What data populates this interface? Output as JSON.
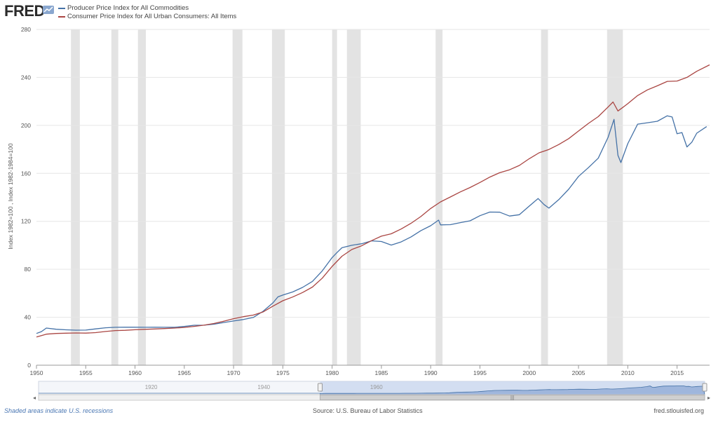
{
  "header": {
    "logo_text": "FRED"
  },
  "colors": {
    "ppi": "#4572a7",
    "cpi": "#aa4643",
    "recession": "#e3e3e3",
    "grid": "#e6e6e6",
    "navigator_fill": "#c8d6ee"
  },
  "chart_data": {
    "type": "line",
    "ylabel": "Index 1982=100 , Index 1982-1984=100",
    "ylim": [
      0,
      280
    ],
    "xlim": [
      1950,
      2018.3
    ],
    "yticks": [
      0,
      40,
      80,
      120,
      160,
      200,
      240,
      280
    ],
    "xticks": [
      1950,
      1955,
      1960,
      1965,
      1970,
      1975,
      1980,
      1985,
      1990,
      1995,
      2000,
      2005,
      2010,
      2015
    ],
    "recessions": [
      [
        1953.5,
        1954.4
      ],
      [
        1957.6,
        1958.3
      ],
      [
        1960.3,
        1961.1
      ],
      [
        1969.9,
        1970.9
      ],
      [
        1973.9,
        1975.2
      ],
      [
        1980.0,
        1980.5
      ],
      [
        1981.5,
        1982.9
      ],
      [
        1990.5,
        1991.2
      ],
      [
        2001.2,
        2001.9
      ],
      [
        2007.9,
        2009.5
      ]
    ],
    "series": [
      {
        "name": "Producer Price Index for All Commodities",
        "points": [
          [
            1950,
            26.5
          ],
          [
            1950.5,
            28
          ],
          [
            1951,
            31
          ],
          [
            1952,
            30
          ],
          [
            1953,
            29.5
          ],
          [
            1954,
            29.2
          ],
          [
            1955,
            29.3
          ],
          [
            1956,
            30.3
          ],
          [
            1957,
            31.2
          ],
          [
            1958,
            31.6
          ],
          [
            1959,
            31.7
          ],
          [
            1960,
            31.7
          ],
          [
            1961,
            31.6
          ],
          [
            1962,
            31.7
          ],
          [
            1963,
            31.6
          ],
          [
            1964,
            31.6
          ],
          [
            1965,
            32.3
          ],
          [
            1966,
            33.3
          ],
          [
            1967,
            33.4
          ],
          [
            1968,
            34.2
          ],
          [
            1969,
            35.6
          ],
          [
            1970,
            36.9
          ],
          [
            1971,
            38.1
          ],
          [
            1972,
            39.8
          ],
          [
            1973,
            45
          ],
          [
            1974,
            52
          ],
          [
            1974.5,
            57
          ],
          [
            1975,
            58.5
          ],
          [
            1976,
            61.1
          ],
          [
            1977,
            64.9
          ],
          [
            1978,
            69.9
          ],
          [
            1979,
            78.7
          ],
          [
            1980,
            89.8
          ],
          [
            1980.5,
            94
          ],
          [
            1981,
            98
          ],
          [
            1982,
            100
          ],
          [
            1983,
            101.3
          ],
          [
            1984,
            103.7
          ],
          [
            1985,
            103.2
          ],
          [
            1986,
            100.2
          ],
          [
            1987,
            102.8
          ],
          [
            1988,
            106.9
          ],
          [
            1989,
            112.2
          ],
          [
            1990,
            116.3
          ],
          [
            1990.8,
            121
          ],
          [
            1991,
            117
          ],
          [
            1992,
            117.2
          ],
          [
            1993,
            118.9
          ],
          [
            1994,
            120.4
          ],
          [
            1995,
            124.7
          ],
          [
            1996,
            127.7
          ],
          [
            1997,
            127.6
          ],
          [
            1998,
            124.4
          ],
          [
            1999,
            125.5
          ],
          [
            2000,
            132.7
          ],
          [
            2000.9,
            139
          ],
          [
            2001.5,
            134
          ],
          [
            2002,
            131
          ],
          [
            2003,
            138.1
          ],
          [
            2004,
            146.7
          ],
          [
            2005,
            157.4
          ],
          [
            2006,
            164.7
          ],
          [
            2007,
            172.6
          ],
          [
            2008,
            190
          ],
          [
            2008.6,
            205
          ],
          [
            2009,
            175
          ],
          [
            2009.3,
            169
          ],
          [
            2010,
            184.7
          ],
          [
            2011,
            201
          ],
          [
            2012,
            202.2
          ],
          [
            2013,
            203.4
          ],
          [
            2014,
            208
          ],
          [
            2014.5,
            207
          ],
          [
            2015,
            193
          ],
          [
            2015.5,
            194
          ],
          [
            2016,
            182
          ],
          [
            2016.5,
            186
          ],
          [
            2017,
            193.5
          ],
          [
            2018,
            199
          ]
        ]
      },
      {
        "name": "Consumer Price Index for All Urban Consumers: All Items",
        "points": [
          [
            1950,
            23.5
          ],
          [
            1951,
            25.9
          ],
          [
            1952,
            26.5
          ],
          [
            1953,
            26.7
          ],
          [
            1954,
            26.9
          ],
          [
            1955,
            26.8
          ],
          [
            1956,
            27.2
          ],
          [
            1957,
            28.1
          ],
          [
            1958,
            28.9
          ],
          [
            1959,
            29.1
          ],
          [
            1960,
            29.6
          ],
          [
            1961,
            29.9
          ],
          [
            1962,
            30.2
          ],
          [
            1963,
            30.6
          ],
          [
            1964,
            31.0
          ],
          [
            1965,
            31.5
          ],
          [
            1966,
            32.4
          ],
          [
            1967,
            33.4
          ],
          [
            1968,
            34.8
          ],
          [
            1969,
            36.7
          ],
          [
            1970,
            38.8
          ],
          [
            1971,
            40.5
          ],
          [
            1972,
            41.8
          ],
          [
            1973,
            44.4
          ],
          [
            1974,
            49.3
          ],
          [
            1975,
            53.8
          ],
          [
            1976,
            56.9
          ],
          [
            1977,
            60.6
          ],
          [
            1978,
            65.2
          ],
          [
            1979,
            72.6
          ],
          [
            1980,
            82.4
          ],
          [
            1981,
            90.9
          ],
          [
            1982,
            96.5
          ],
          [
            1983,
            99.6
          ],
          [
            1984,
            103.9
          ],
          [
            1985,
            107.6
          ],
          [
            1986,
            109.6
          ],
          [
            1987,
            113.6
          ],
          [
            1988,
            118.3
          ],
          [
            1989,
            124.0
          ],
          [
            1990,
            130.7
          ],
          [
            1991,
            136.2
          ],
          [
            1992,
            140.3
          ],
          [
            1993,
            144.5
          ],
          [
            1994,
            148.2
          ],
          [
            1995,
            152.4
          ],
          [
            1996,
            156.9
          ],
          [
            1997,
            160.5
          ],
          [
            1998,
            163.0
          ],
          [
            1999,
            166.6
          ],
          [
            2000,
            172.2
          ],
          [
            2001,
            177.1
          ],
          [
            2002,
            179.9
          ],
          [
            2003,
            184.0
          ],
          [
            2004,
            188.9
          ],
          [
            2005,
            195.3
          ],
          [
            2006,
            201.6
          ],
          [
            2007,
            207.3
          ],
          [
            2008,
            215.3
          ],
          [
            2008.5,
            219.5
          ],
          [
            2009,
            212
          ],
          [
            2009.5,
            215
          ],
          [
            2010,
            218.1
          ],
          [
            2011,
            224.9
          ],
          [
            2012,
            229.6
          ],
          [
            2013,
            233.0
          ],
          [
            2014,
            236.7
          ],
          [
            2015,
            237.0
          ],
          [
            2016,
            240.0
          ],
          [
            2017,
            245.1
          ],
          [
            2018.3,
            250.5
          ]
        ]
      }
    ],
    "navigator": {
      "labels": [
        "1920",
        "1940",
        "1960"
      ],
      "range_from": 1950,
      "range_to": 2018.3
    }
  },
  "footer": {
    "note": "Shaded areas indicate U.S. recessions",
    "source": "Source: U.S. Bureau of Labor Statistics",
    "site": "fred.stlouisfed.org"
  }
}
